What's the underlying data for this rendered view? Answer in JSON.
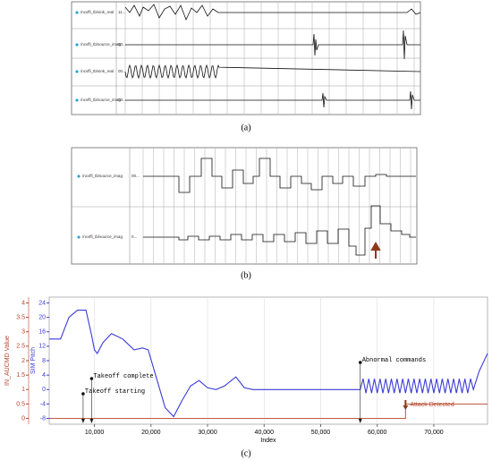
{
  "panel_a": {
    "caption": "(a)",
    "signals": [
      {
        "name": "/ncvffi_tb/sink_real",
        "value": "11..."
      },
      {
        "name": "/ncvffi_tb/source_imag",
        "value": "80..."
      },
      {
        "name": "/ncvffi_tb/sink_real",
        "value": "00..."
      },
      {
        "name": "/ncvffi_tb/source_imag",
        "value": "00..."
      }
    ]
  },
  "panel_b": {
    "caption": "(b)",
    "signals": [
      {
        "name": "/ncvffi_tb/source_imag",
        "value": "00..."
      },
      {
        "name": "/ncvffi_tb/source_imag",
        "value": "0..."
      }
    ]
  },
  "chart_data": {
    "type": "line",
    "caption": "(c)",
    "xlabel": "Index",
    "ylabel": "SIM Pitch",
    "y2label": "IN_AUCMD Value",
    "xlim": [
      2000,
      79500
    ],
    "xticks": [
      {
        "value": 10000,
        "label": "10,000"
      },
      {
        "value": 20000,
        "label": "20,000"
      },
      {
        "value": 30000,
        "label": "30,000"
      },
      {
        "value": 40000,
        "label": "40,000"
      },
      {
        "value": 50000,
        "label": "50,000"
      },
      {
        "value": 60000,
        "label": "60,000"
      },
      {
        "value": 70000,
        "label": "70,000"
      }
    ],
    "ylim": [
      -9.6,
      25.6
    ],
    "yticks": [
      -8,
      -4,
      0,
      4,
      8,
      12,
      16,
      20,
      24
    ],
    "y2lim": [
      -0.2,
      4.2
    ],
    "y2ticks": [
      0,
      0.5,
      1,
      1.5,
      2,
      2.5,
      3,
      3.5,
      4
    ],
    "grid": true,
    "series": [
      {
        "name": "SIM Pitch",
        "color": "#3b3bd6",
        "x": [
          2000,
          4000,
          5500,
          7000,
          8500,
          9500,
          10000,
          10500,
          11500,
          13000,
          15000,
          17000,
          18500,
          19500,
          21000,
          22500,
          24000,
          25500,
          27000,
          28500,
          30000,
          31500,
          33000,
          35000,
          36500,
          38000,
          45000,
          52000,
          57000,
          57500,
          58000,
          58500,
          59000,
          59500,
          60000,
          60500,
          61000,
          61500,
          62000,
          62500,
          63000,
          63500,
          64000,
          64500,
          65000,
          65500,
          66000,
          66500,
          67000,
          67500,
          68000,
          68500,
          69000,
          69500,
          70000,
          70500,
          71000,
          71500,
          72000,
          72500,
          73000,
          73500,
          74000,
          74500,
          75000,
          75500,
          76000,
          76500,
          77000,
          78000,
          79500
        ],
        "values": [
          14,
          14,
          20,
          22,
          22,
          15,
          11,
          10,
          13,
          15.5,
          14,
          11,
          11.5,
          11,
          3,
          -5,
          -7.5,
          -3,
          1,
          2.5,
          0.5,
          0,
          1,
          3.5,
          0.5,
          0,
          0,
          0,
          0,
          3,
          -1,
          3,
          -1,
          3,
          -1,
          3,
          -1,
          3,
          -1,
          3,
          -1,
          3,
          -1,
          3,
          -1,
          3,
          -1,
          3,
          -1,
          3,
          -1,
          3,
          -1,
          3,
          -1,
          3,
          -1,
          3,
          -1,
          3,
          -1,
          3,
          -1,
          3,
          -1,
          3,
          -1,
          3,
          0,
          5,
          10
        ]
      },
      {
        "name": "IN_AUCMD Value",
        "color": "#b5452a",
        "axis": "y2",
        "x": [
          2000,
          65000,
          65000,
          79500
        ],
        "values": [
          0,
          0,
          0.5,
          0.5
        ]
      }
    ],
    "annotations": [
      {
        "text": "Takeoff starting",
        "x": 8000
      },
      {
        "text": "Takeoff complete",
        "x": 9500
      },
      {
        "text": "Abnormal commands",
        "x": 57000
      },
      {
        "text": "Attack Detected",
        "x": 65000
      }
    ]
  }
}
